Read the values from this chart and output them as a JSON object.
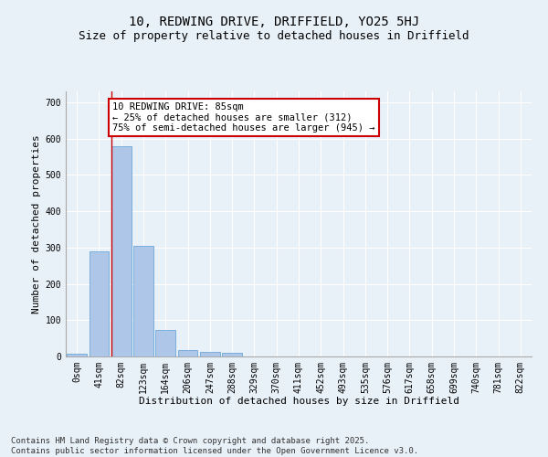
{
  "title1": "10, REDWING DRIVE, DRIFFIELD, YO25 5HJ",
  "title2": "Size of property relative to detached houses in Driffield",
  "xlabel": "Distribution of detached houses by size in Driffield",
  "ylabel": "Number of detached properties",
  "categories": [
    "0sqm",
    "41sqm",
    "82sqm",
    "123sqm",
    "164sqm",
    "206sqm",
    "247sqm",
    "288sqm",
    "329sqm",
    "370sqm",
    "411sqm",
    "452sqm",
    "493sqm",
    "535sqm",
    "576sqm",
    "617sqm",
    "658sqm",
    "699sqm",
    "740sqm",
    "781sqm",
    "822sqm"
  ],
  "values": [
    8,
    290,
    580,
    305,
    72,
    18,
    12,
    10,
    0,
    0,
    0,
    0,
    0,
    0,
    0,
    0,
    0,
    0,
    0,
    0,
    0
  ],
  "bar_color": "#aec6e8",
  "bar_edge_color": "#5a9fd4",
  "red_line_x": 1.57,
  "ylim": [
    0,
    730
  ],
  "yticks": [
    0,
    100,
    200,
    300,
    400,
    500,
    600,
    700
  ],
  "annotation_text": "10 REDWING DRIVE: 85sqm\n← 25% of detached houses are smaller (312)\n75% of semi-detached houses are larger (945) →",
  "annotation_box_color": "#ffffff",
  "annotation_border_color": "#cc0000",
  "footer_text": "Contains HM Land Registry data © Crown copyright and database right 2025.\nContains public sector information licensed under the Open Government Licence v3.0.",
  "bg_color": "#e8f0f8",
  "grid_color": "#ffffff",
  "title1_fontsize": 10,
  "title2_fontsize": 9,
  "xlabel_fontsize": 8,
  "ylabel_fontsize": 8,
  "tick_fontsize": 7,
  "annotation_fontsize": 7.5,
  "footer_fontsize": 6.5
}
